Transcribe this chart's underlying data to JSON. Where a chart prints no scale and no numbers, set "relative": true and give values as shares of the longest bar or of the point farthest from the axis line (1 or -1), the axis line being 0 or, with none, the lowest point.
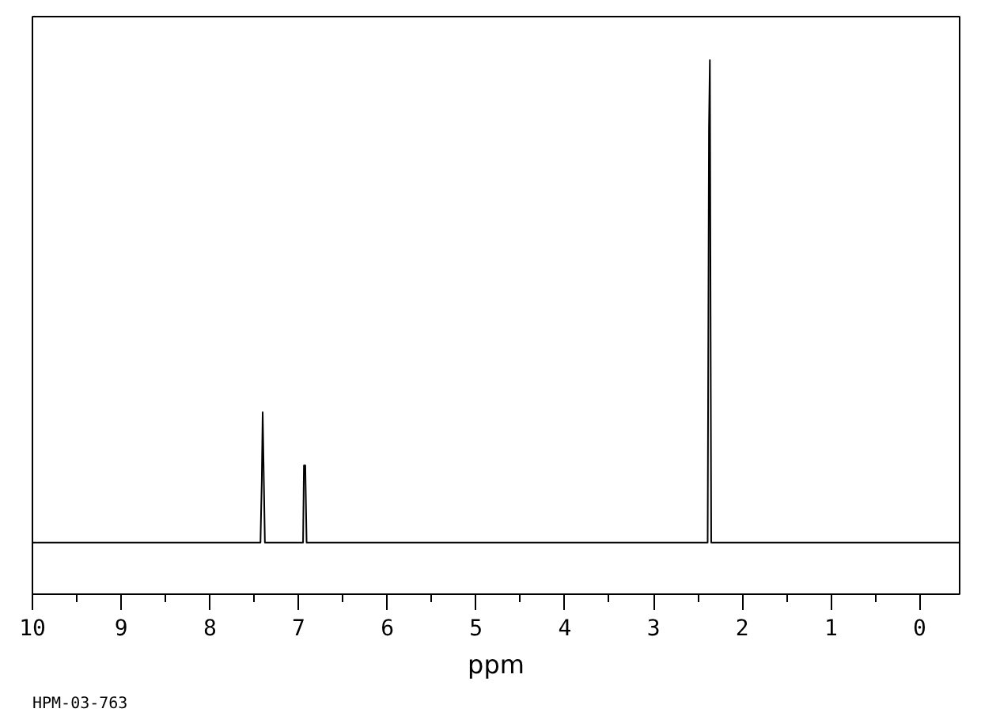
{
  "chart_data": {
    "type": "line",
    "relative": true,
    "xlabel": "ppm",
    "x": [
      10,
      7.43,
      7.415,
      7.405,
      7.395,
      7.38,
      6.95,
      6.94,
      6.925,
      6.91,
      2.39,
      2.375,
      2.365,
      2.35,
      -0.45
    ],
    "series": [
      {
        "color": "#000000",
        "values": [
          0,
          0,
          0.13,
          0.27,
          0.16,
          0,
          0,
          0.16,
          0.16,
          0,
          0,
          0.86,
          1,
          0,
          0
        ]
      }
    ],
    "xlim": [
      10,
      -0.45
    ],
    "xticks": [
      10,
      9,
      8,
      7,
      6,
      5,
      4,
      3,
      2,
      1,
      0
    ],
    "tick_labels": "x",
    "grid": false,
    "marker": "none",
    "line_style": "solid",
    "annotations": [
      "HPM-03-763"
    ]
  }
}
